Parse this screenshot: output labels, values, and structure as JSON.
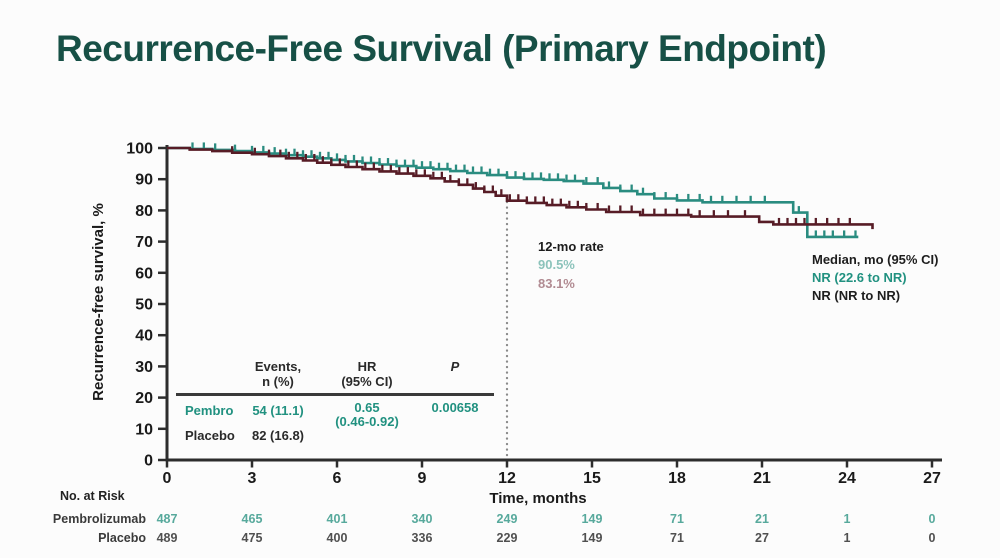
{
  "title": {
    "text": "Recurrence-Free Survival (Primary Endpoint)"
  },
  "colors": {
    "title": "#175046",
    "pembro": "#219180",
    "pembro_curve": "#2a8c80",
    "placebo_curve": "#571c26",
    "axis": "#2d2d2d",
    "tick_label": "#1a1a1a",
    "rate_pembro_faded": "#8cc3bb",
    "rate_placebo_faded": "#b18b92",
    "risk_pembro": "#57a99c",
    "risk_placebo": "#505050",
    "dotted_line": "#8a8a8a"
  },
  "chart_data": {
    "type": "line",
    "subtype": "kaplan-meier",
    "title": "Recurrence-Free Survival (Primary Endpoint)",
    "xlabel": "Time, months",
    "ylabel": "Recurrence-free survival, %",
    "xlim": [
      0,
      27
    ],
    "ylim": [
      0,
      100
    ],
    "x_ticks": [
      0,
      3,
      6,
      9,
      12,
      15,
      18,
      21,
      24,
      27
    ],
    "y_ticks": [
      0,
      10,
      20,
      30,
      40,
      50,
      60,
      70,
      80,
      90,
      100
    ],
    "grid": false,
    "reference_line_x": 12,
    "series": [
      {
        "name": "Pembro",
        "color": "#2a8c80",
        "rate_12mo": 90.5,
        "steps": [
          [
            0,
            100
          ],
          [
            0.8,
            99.7
          ],
          [
            1.6,
            99.4
          ],
          [
            2.4,
            99.0
          ],
          [
            3.0,
            98.6
          ],
          [
            3.6,
            98.2
          ],
          [
            4.2,
            97.7
          ],
          [
            4.8,
            97.2
          ],
          [
            5.3,
            96.7
          ],
          [
            5.8,
            96.2
          ],
          [
            6.3,
            95.7
          ],
          [
            6.9,
            95.2
          ],
          [
            7.5,
            94.7
          ],
          [
            8.1,
            94.2
          ],
          [
            8.8,
            93.7
          ],
          [
            9.4,
            93.2
          ],
          [
            10.0,
            92.6
          ],
          [
            10.6,
            92.0
          ],
          [
            11.3,
            91.3
          ],
          [
            12.0,
            90.5
          ],
          [
            12.6,
            90.1
          ],
          [
            13.3,
            89.8
          ],
          [
            14.0,
            89.4
          ],
          [
            14.7,
            88.6
          ],
          [
            15.4,
            87.2
          ],
          [
            16.0,
            86.2
          ],
          [
            16.6,
            85.2
          ],
          [
            17.2,
            83.8
          ],
          [
            18.0,
            83.2
          ],
          [
            18.9,
            82.6
          ],
          [
            22.1,
            79.3
          ],
          [
            22.6,
            71.5
          ],
          [
            24.4,
            71.5
          ]
        ],
        "censor_times": [
          0.9,
          1.3,
          1.7,
          2.4,
          3.0,
          3.4,
          3.8,
          4.2,
          4.5,
          4.8,
          5.1,
          5.4,
          5.7,
          6.0,
          6.3,
          6.6,
          6.9,
          7.2,
          7.5,
          7.8,
          8.1,
          8.4,
          8.7,
          9.0,
          9.3,
          9.6,
          9.9,
          10.2,
          10.5,
          10.8,
          11.1,
          11.4,
          11.7,
          12.0,
          12.3,
          12.6,
          12.9,
          13.2,
          13.5,
          13.8,
          14.1,
          14.4,
          14.8,
          15.2,
          15.6,
          16.0,
          16.4,
          16.8,
          17.2,
          17.6,
          18.0,
          18.4,
          18.8,
          19.2,
          19.6,
          20.1,
          20.6,
          21.1,
          22.3,
          22.9,
          23.2,
          23.5,
          23.9,
          24.3
        ]
      },
      {
        "name": "Placebo",
        "color": "#571c26",
        "rate_12mo": 83.1,
        "steps": [
          [
            0,
            100
          ],
          [
            0.8,
            99.5
          ],
          [
            1.6,
            99.0
          ],
          [
            2.3,
            98.5
          ],
          [
            3.0,
            98.0
          ],
          [
            3.6,
            97.4
          ],
          [
            4.2,
            96.7
          ],
          [
            4.8,
            96.0
          ],
          [
            5.3,
            95.3
          ],
          [
            5.8,
            94.6
          ],
          [
            6.3,
            93.9
          ],
          [
            6.9,
            93.2
          ],
          [
            7.5,
            92.5
          ],
          [
            8.1,
            91.8
          ],
          [
            8.7,
            91.1
          ],
          [
            9.3,
            90.3
          ],
          [
            9.8,
            89.3
          ],
          [
            10.3,
            88.2
          ],
          [
            10.8,
            87.0
          ],
          [
            11.2,
            85.9
          ],
          [
            11.6,
            84.7
          ],
          [
            12.0,
            83.1
          ],
          [
            12.7,
            82.4
          ],
          [
            13.4,
            81.7
          ],
          [
            14.1,
            81.0
          ],
          [
            14.8,
            80.3
          ],
          [
            15.5,
            79.5
          ],
          [
            16.7,
            78.5
          ],
          [
            18.5,
            78.0
          ],
          [
            20.9,
            76.3
          ],
          [
            21.4,
            75.5
          ],
          [
            24.6,
            75.5
          ],
          [
            24.9,
            74.0
          ]
        ],
        "censor_times": [
          2.3,
          3.1,
          3.6,
          4.0,
          4.3,
          4.6,
          4.9,
          5.2,
          5.5,
          5.8,
          6.1,
          6.4,
          6.7,
          7.0,
          7.3,
          7.6,
          7.9,
          8.2,
          8.5,
          8.8,
          9.1,
          9.4,
          9.7,
          10.0,
          10.3,
          10.6,
          10.9,
          11.2,
          11.5,
          11.8,
          12.1,
          12.4,
          12.7,
          13.0,
          13.3,
          13.6,
          13.9,
          14.2,
          14.5,
          14.8,
          15.2,
          15.6,
          16.0,
          16.4,
          16.8,
          17.2,
          17.6,
          18.0,
          18.4,
          18.8,
          19.3,
          19.8,
          20.4,
          21.6,
          21.9,
          22.2,
          22.5,
          22.9,
          23.3,
          23.7,
          24.1
        ]
      }
    ]
  },
  "annotations": {
    "rate_label": "12-mo rate",
    "rate_pembro": "90.5%",
    "rate_placebo": "83.1%",
    "median_header": "Median, mo (95% CI)",
    "median_pembro": "NR (22.6 to NR)",
    "median_placebo": "NR (NR to NR)"
  },
  "stats_table": {
    "header_col1_line1": "Events,",
    "header_col1_line2": "n (%)",
    "header_col2_line1": "HR",
    "header_col2_line2": "(95% CI)",
    "header_col3": "P",
    "rows": [
      {
        "label": "Pembro",
        "events": "54 (11.1)",
        "hr": "0.65",
        "hr_ci": "(0.46-0.92)",
        "p": "0.00658"
      },
      {
        "label": "Placebo",
        "events": "82 (16.8)",
        "hr": "",
        "hr_ci": "",
        "p": ""
      }
    ]
  },
  "risk_table": {
    "header": "No. at Risk",
    "time_points": [
      0,
      3,
      6,
      9,
      12,
      15,
      18,
      21,
      24,
      27
    ],
    "rows": [
      {
        "label": "Pembrolizumab",
        "values": [
          "487",
          "465",
          "401",
          "340",
          "249",
          "149",
          "71",
          "21",
          "1",
          "0"
        ]
      },
      {
        "label": "Placebo",
        "values": [
          "489",
          "475",
          "400",
          "336",
          "229",
          "149",
          "71",
          "27",
          "1",
          "0"
        ]
      }
    ]
  }
}
